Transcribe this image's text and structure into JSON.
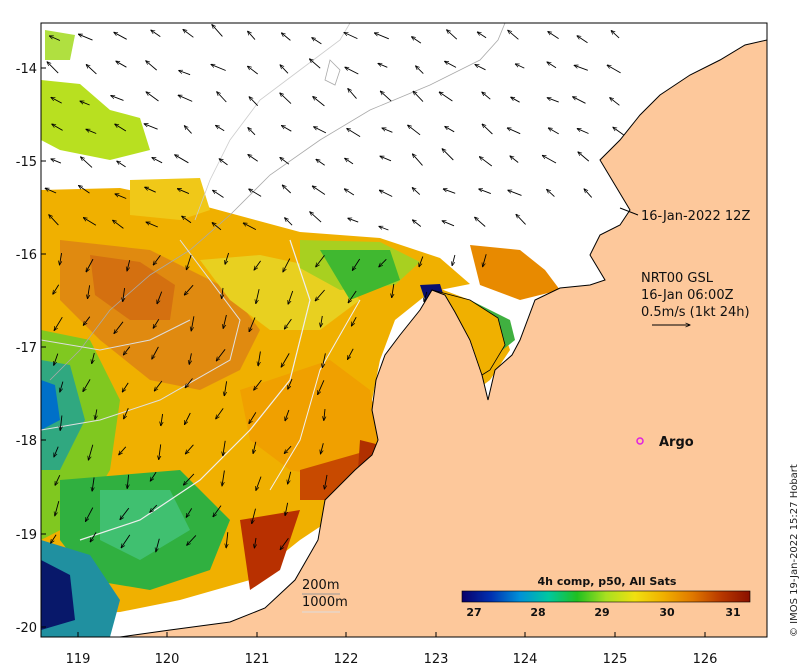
{
  "map": {
    "x_ticks": [
      "119",
      "120",
      "121",
      "122",
      "123",
      "124",
      "125",
      "126"
    ],
    "y_ticks": [
      "-14",
      "-15",
      "-16",
      "-17",
      "-18",
      "-19",
      "-20"
    ],
    "x_range": [
      118.6,
      126.8
    ],
    "y_range": [
      -20.3,
      -13.55
    ],
    "colors": {
      "land": "#fdc89b",
      "ocean": "#ffffff",
      "coast": "#000000",
      "bathy_200": "#bbbbbb",
      "bathy_1000": "#e6e6e6"
    }
  },
  "annotations": {
    "timestamp_label": "16-Jan-2022 12Z",
    "current_source": "NRT00 GSL",
    "current_time": "16-Jan 06:00Z",
    "current_scale": "0.5m/s (1kt 24h)",
    "argo_label": "Argo",
    "bathy_200": "200m",
    "bathy_1000": "1000m"
  },
  "colorbar": {
    "title": "4h comp, p50, All Sats",
    "ticks": [
      "27",
      "28",
      "29",
      "30",
      "31"
    ],
    "range": [
      26.6,
      31.4
    ],
    "colors": [
      "#08006a",
      "#0030b0",
      "#0090d8",
      "#00c8a0",
      "#20c020",
      "#a8e020",
      "#f0e010",
      "#f0b000",
      "#e07800",
      "#b83800",
      "#8a1000"
    ]
  },
  "credit": "© IMOS 19-Jan-2022 15:27 Hobart"
}
